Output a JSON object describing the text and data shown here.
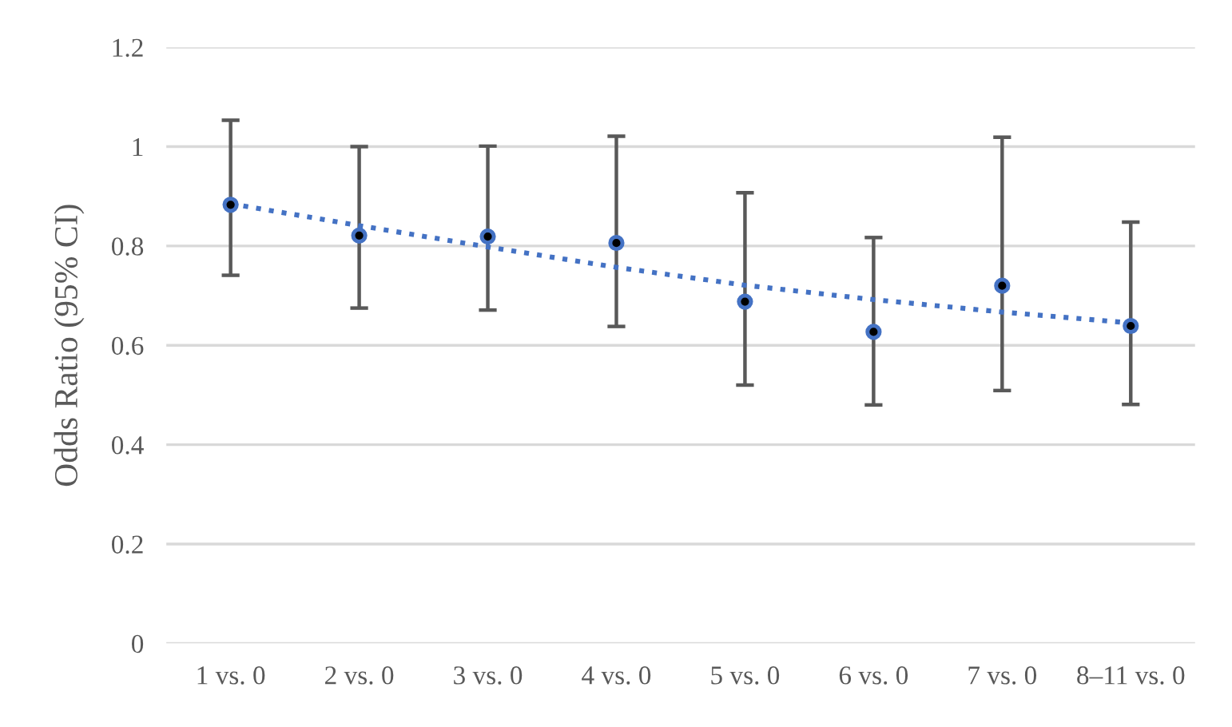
{
  "chart_data": {
    "type": "scatter",
    "ylabel": "Odds Ratio (95% CI)",
    "categories": [
      "1 vs. 0",
      "2 vs. 0",
      "3 vs. 0",
      "4 vs. 0",
      "5 vs. 0",
      "6 vs. 0",
      "7 vs. 0",
      "8–11 vs. 0"
    ],
    "series": [
      {
        "color": "#4472c4",
        "marker": "circle",
        "values": [
          0.883,
          0.821,
          0.819,
          0.806,
          0.688,
          0.627,
          0.72,
          0.639
        ],
        "errors": [
          [
            0.741,
            1.053
          ],
          [
            0.675,
            1.0
          ],
          [
            0.671,
            1.001
          ],
          [
            0.638,
            1.021
          ],
          [
            0.52,
            0.907
          ],
          [
            0.48,
            0.817
          ],
          [
            0.509,
            1.019
          ],
          [
            0.481,
            0.848
          ]
        ]
      },
      {
        "type": "line",
        "color": "#4472c4",
        "line_style": "dotted",
        "marker": "none",
        "values": [
          0.885,
          0.841,
          0.798,
          0.757,
          0.721,
          0.692,
          0.667,
          0.645
        ]
      }
    ],
    "ylim": [
      0,
      1.2
    ],
    "yticks": [
      0,
      0.2,
      0.4,
      0.6,
      0.8,
      1,
      1.2
    ],
    "grid": "y",
    "legend": false
  }
}
